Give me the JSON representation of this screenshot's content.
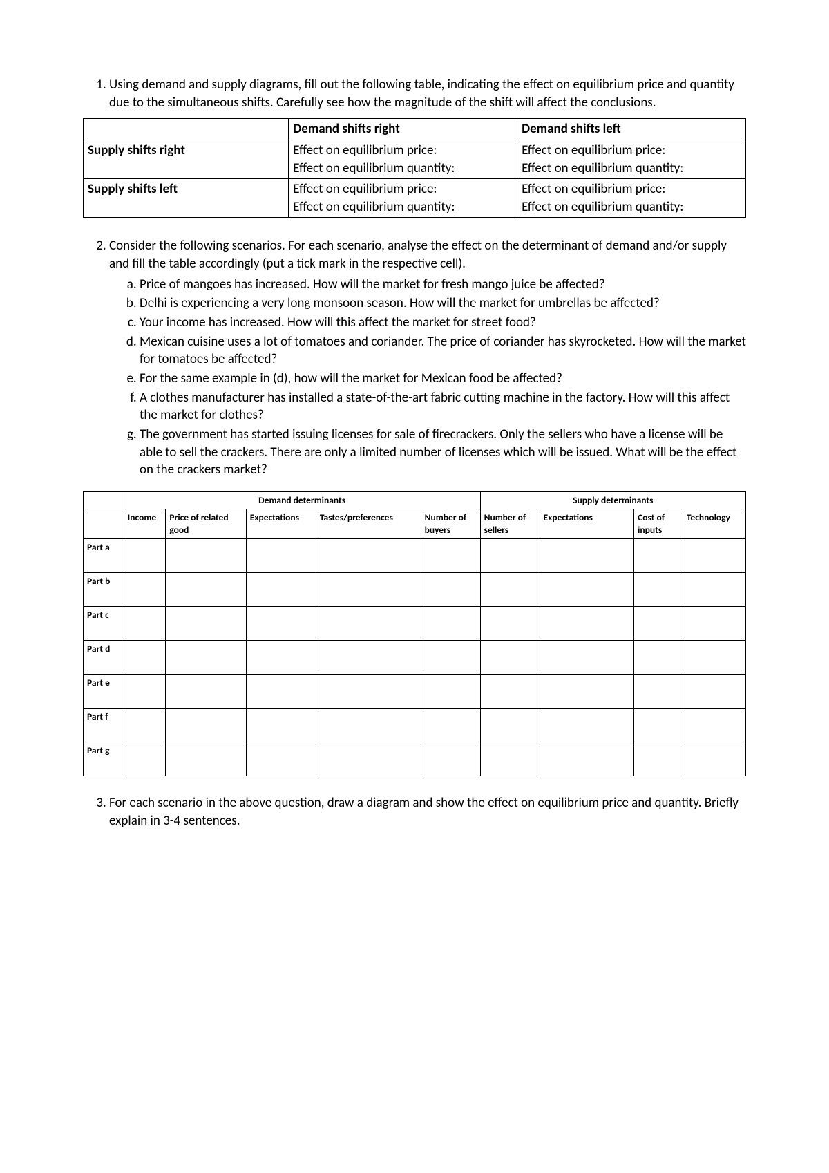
{
  "questions": {
    "q1": {
      "text": "Using demand and supply diagrams, fill out the following table, indicating the effect on equilibrium price and quantity due to the simultaneous shifts. Carefully see how the magnitude of the shift will affect the conclusions."
    },
    "q2": {
      "intro": "Consider the following scenarios. For each scenario, analyse the effect on the determinant of demand and/or supply and fill the table accordingly (put a tick mark in the respective cell).",
      "parts": {
        "a": "Price of mangoes has increased. How will the market for fresh mango juice be affected?",
        "b": "Delhi is experiencing a very long monsoon season. How will the market for umbrellas be affected?",
        "c": "Your income has increased. How will this affect the market for street food?",
        "d": "Mexican cuisine uses a lot of tomatoes and coriander. The price of coriander has skyrocketed. How will the market for tomatoes be affected?",
        "e": "For the same example in (d), how will the market for Mexican food be affected?",
        "f": "A clothes manufacturer has installed a state-of-the-art fabric cutting machine in the factory. How will this affect the market for clothes?",
        "g": "The government has started issuing licenses for sale of firecrackers. Only the sellers who have a license will be able to sell the crackers. There are only a limited number of licenses which will be issued. What will be the effect on the crackers market?"
      }
    },
    "q3": {
      "text": "For each scenario in the above question, draw a diagram and show the effect on equilibrium price and quantity. Briefly explain in 3-4 sentences."
    }
  },
  "table1": {
    "headers": {
      "blank": "",
      "col2": "Demand shifts right",
      "col3": "Demand shifts left"
    },
    "rows": [
      {
        "label": "Supply shifts right",
        "cell2_line1": "Effect on equilibrium price:",
        "cell2_line2": "Effect on equilibrium quantity:",
        "cell3_line1": "Effect on equilibrium price:",
        "cell3_line2": "Effect on equilibrium quantity:"
      },
      {
        "label": "Supply shifts left",
        "cell2_line1": "Effect on equilibrium price:",
        "cell2_line2": "Effect on equilibrium quantity:",
        "cell3_line1": "Effect on equilibrium price:",
        "cell3_line2": "Effect on equilibrium quantity:"
      }
    ]
  },
  "table2": {
    "group_headers": {
      "demand": "Demand determinants",
      "supply": "Supply determinants"
    },
    "columns": {
      "c1": "Income",
      "c2": "Price of related good",
      "c3": "Expectations",
      "c4": "Tastes/preferences",
      "c5": "Number of buyers",
      "c6": "Number of sellers",
      "c7": "Expectations",
      "c8": "Cost of inputs",
      "c9": "Technology"
    },
    "row_labels": {
      "a": "Part a",
      "b": "Part b",
      "c": "Part c",
      "d": "Part d",
      "e": "Part e",
      "f": "Part f",
      "g": "Part g"
    }
  }
}
